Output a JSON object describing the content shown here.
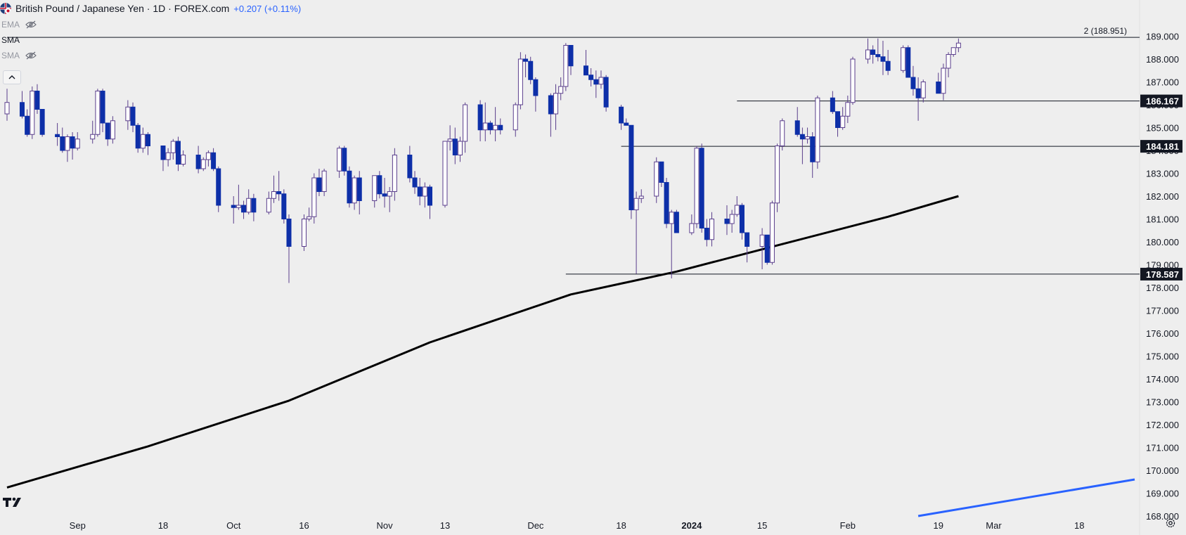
{
  "header": {
    "symbol_title": "British Pound / Japanese Yen · 1D · FOREX.com",
    "change": "+0.207 (+0.11%)"
  },
  "indicators": [
    {
      "label": "EMA",
      "visible": false,
      "icon": "eye-off-icon"
    },
    {
      "label": "SMA",
      "visible": true,
      "icon": "none"
    },
    {
      "label": "SMA",
      "visible": false,
      "icon": "eye-off-icon"
    }
  ],
  "colors": {
    "up": "#ffffff",
    "down": "#0d2fa8",
    "wick": "#5a3e8c",
    "sma200": "#000000",
    "sma_blue": "#2962ff",
    "background": "#eeeeee"
  },
  "chart_data": {
    "type": "candlestick",
    "title": "British Pound / Japanese Yen · 1D · FOREX.com",
    "y_axis": {
      "ticks": [
        "168.000",
        "169.000",
        "170.000",
        "171.000",
        "172.000",
        "173.000",
        "174.000",
        "175.000",
        "176.000",
        "177.000",
        "178.000",
        "179.000",
        "180.000",
        "181.000",
        "182.000",
        "183.000",
        "184.000",
        "185.000",
        "186.000",
        "187.000",
        "188.000",
        "189.000"
      ],
      "range": [
        168.0,
        189.6
      ]
    },
    "x_axis": {
      "ticks": [
        {
          "label": "Sep",
          "date": "2023-09-01"
        },
        {
          "label": "18",
          "date": "2023-09-18"
        },
        {
          "label": "Oct",
          "date": "2023-10-02"
        },
        {
          "label": "16",
          "date": "2023-10-16"
        },
        {
          "label": "Nov",
          "date": "2023-11-01"
        },
        {
          "label": "13",
          "date": "2023-11-13"
        },
        {
          "label": "Dec",
          "date": "2023-12-01"
        },
        {
          "label": "18",
          "date": "2023-12-18"
        },
        {
          "label": "2024",
          "date": "2024-01-01",
          "bold": true
        },
        {
          "label": "15",
          "date": "2024-01-15"
        },
        {
          "label": "Feb",
          "date": "2024-02-01"
        },
        {
          "label": "19",
          "date": "2024-02-19"
        },
        {
          "label": "Mar",
          "date": "2024-03-01"
        },
        {
          "label": "18",
          "date": "2024-03-18"
        }
      ],
      "range": [
        "2023-08-18",
        "2024-03-29"
      ]
    },
    "horizontal_levels": [
      {
        "value": 188.951,
        "label": "2 (188.951)",
        "style": "plain-label",
        "line_from": "2023-08-18"
      },
      {
        "value": 186.167,
        "label": "186.167",
        "style": "price-tag",
        "line_from": "2024-01-10"
      },
      {
        "value": 184.181,
        "label": "184.181",
        "style": "price-tag",
        "line_from": "2023-12-18"
      },
      {
        "value": 178.587,
        "label": "178.587",
        "style": "price-tag",
        "line_from": "2023-12-07"
      }
    ],
    "candles": [
      [
        "2023-08-18",
        185.6,
        186.7,
        185.3,
        186.1
      ],
      [
        "2023-08-21",
        186.1,
        186.6,
        185.4,
        185.5
      ],
      [
        "2023-08-22",
        185.5,
        185.8,
        184.6,
        184.7
      ],
      [
        "2023-08-23",
        184.7,
        186.8,
        184.5,
        186.6
      ],
      [
        "2023-08-24",
        186.6,
        186.9,
        185.6,
        185.8
      ],
      [
        "2023-08-25",
        185.8,
        185.8,
        184.6,
        184.7
      ],
      [
        "2023-08-28",
        184.7,
        185.2,
        184.2,
        184.6
      ],
      [
        "2023-08-29",
        184.6,
        185.0,
        183.9,
        184.0
      ],
      [
        "2023-08-30",
        184.0,
        184.7,
        183.5,
        184.6
      ],
      [
        "2023-08-31",
        184.6,
        184.8,
        183.6,
        184.1
      ],
      [
        "2023-09-01",
        184.1,
        184.8,
        184.0,
        184.5
      ],
      [
        "2023-09-04",
        184.5,
        185.3,
        184.3,
        184.7
      ],
      [
        "2023-09-05",
        184.7,
        186.7,
        184.6,
        186.6
      ],
      [
        "2023-09-06",
        186.6,
        186.7,
        184.8,
        185.2
      ],
      [
        "2023-09-07",
        185.2,
        185.2,
        184.2,
        184.5
      ],
      [
        "2023-09-08",
        184.5,
        185.5,
        184.3,
        185.3
      ],
      [
        "2023-09-11",
        185.3,
        186.2,
        184.9,
        185.9
      ],
      [
        "2023-09-12",
        185.9,
        186.1,
        184.8,
        185.1
      ],
      [
        "2023-09-13",
        185.1,
        185.2,
        183.9,
        184.1
      ],
      [
        "2023-09-14",
        184.1,
        185.0,
        183.9,
        184.7
      ],
      [
        "2023-09-15",
        184.7,
        184.8,
        183.8,
        184.2
      ],
      [
        "2023-09-18",
        184.2,
        184.2,
        183.1,
        183.6
      ],
      [
        "2023-09-19",
        183.6,
        184.1,
        183.3,
        183.9
      ],
      [
        "2023-09-20",
        183.9,
        184.5,
        183.6,
        184.4
      ],
      [
        "2023-09-21",
        184.4,
        184.6,
        183.1,
        183.4
      ],
      [
        "2023-09-22",
        183.4,
        184.0,
        183.3,
        183.8
      ],
      [
        "2023-09-25",
        183.8,
        184.2,
        183.0,
        183.2
      ],
      [
        "2023-09-26",
        183.2,
        183.7,
        183.1,
        183.6
      ],
      [
        "2023-09-27",
        183.6,
        184.0,
        183.3,
        183.9
      ],
      [
        "2023-09-28",
        183.9,
        184.1,
        183.1,
        183.2
      ],
      [
        "2023-09-29",
        183.2,
        183.3,
        181.3,
        181.6
      ],
      [
        "2023-10-02",
        181.6,
        182.0,
        180.8,
        181.5
      ],
      [
        "2023-10-03",
        181.5,
        182.5,
        181.4,
        181.6
      ],
      [
        "2023-10-04",
        181.6,
        181.8,
        181.0,
        181.3
      ],
      [
        "2023-10-05",
        181.3,
        182.3,
        181.2,
        181.9
      ],
      [
        "2023-10-06",
        181.9,
        182.1,
        180.9,
        181.3
      ],
      [
        "2023-10-09",
        181.3,
        182.2,
        181.2,
        181.9
      ],
      [
        "2023-10-10",
        181.9,
        182.9,
        181.7,
        182.2
      ],
      [
        "2023-10-11",
        182.2,
        183.1,
        181.8,
        182.1
      ],
      [
        "2023-10-12",
        182.1,
        182.3,
        180.8,
        181.0
      ],
      [
        "2023-10-13",
        181.0,
        181.2,
        178.2,
        179.8
      ],
      [
        "2023-10-16",
        179.8,
        181.2,
        179.6,
        181.0
      ],
      [
        "2023-10-17",
        181.0,
        181.5,
        180.9,
        181.1
      ],
      [
        "2023-10-18",
        181.1,
        183.0,
        180.8,
        182.8
      ],
      [
        "2023-10-19",
        182.8,
        183.2,
        182.0,
        182.2
      ],
      [
        "2023-10-20",
        182.2,
        183.2,
        182.0,
        183.1
      ],
      [
        "2023-10-23",
        183.1,
        184.2,
        182.8,
        184.1
      ],
      [
        "2023-10-24",
        184.1,
        184.2,
        182.9,
        183.1
      ],
      [
        "2023-10-25",
        183.1,
        183.3,
        181.5,
        181.7
      ],
      [
        "2023-10-26",
        181.7,
        182.9,
        181.4,
        182.8
      ],
      [
        "2023-10-27",
        182.8,
        183.1,
        181.2,
        181.8
      ],
      [
        "2023-10-30",
        181.8,
        182.9,
        181.5,
        182.9
      ],
      [
        "2023-10-31",
        182.9,
        183.1,
        181.9,
        182.1
      ],
      [
        "2023-11-01",
        182.1,
        182.8,
        181.5,
        182.0
      ],
      [
        "2023-11-02",
        182.0,
        182.4,
        181.3,
        182.2
      ],
      [
        "2023-11-03",
        182.2,
        184.1,
        181.8,
        183.8
      ],
      [
        "2023-11-06",
        183.8,
        184.2,
        182.6,
        182.8
      ],
      [
        "2023-11-07",
        182.8,
        183.1,
        182.1,
        182.4
      ],
      [
        "2023-11-08",
        182.4,
        182.8,
        181.6,
        182.0
      ],
      [
        "2023-11-09",
        182.0,
        182.6,
        181.5,
        182.4
      ],
      [
        "2023-11-10",
        182.4,
        182.5,
        181.0,
        181.6
      ],
      [
        "2023-11-13",
        181.6,
        184.4,
        181.5,
        184.4
      ],
      [
        "2023-11-14",
        184.4,
        185.1,
        184.0,
        184.5
      ],
      [
        "2023-11-15",
        184.5,
        185.0,
        183.4,
        183.8
      ],
      [
        "2023-11-16",
        183.8,
        184.6,
        183.5,
        184.4
      ],
      [
        "2023-11-17",
        184.4,
        186.1,
        183.9,
        186.0
      ],
      [
        "2023-11-20",
        186.0,
        186.2,
        184.4,
        184.9
      ],
      [
        "2023-11-21",
        184.9,
        186.1,
        184.4,
        185.2
      ],
      [
        "2023-11-22",
        185.2,
        185.3,
        184.7,
        184.9
      ],
      [
        "2023-11-23",
        184.9,
        185.9,
        184.4,
        185.1
      ],
      [
        "2023-11-24",
        185.1,
        185.4,
        184.7,
        184.9
      ],
      [
        "2023-11-27",
        184.9,
        186.1,
        184.6,
        186.0
      ],
      [
        "2023-11-28",
        186.0,
        188.3,
        185.8,
        188.0
      ],
      [
        "2023-11-29",
        188.0,
        188.2,
        187.2,
        187.9
      ],
      [
        "2023-11-30",
        187.9,
        188.1,
        186.9,
        187.1
      ],
      [
        "2023-12-01",
        187.1,
        187.2,
        185.7,
        186.4
      ],
      [
        "2023-12-04",
        186.4,
        186.5,
        184.6,
        185.6
      ],
      [
        "2023-12-05",
        185.6,
        186.9,
        184.9,
        186.5
      ],
      [
        "2023-12-06",
        186.5,
        187.2,
        186.2,
        186.8
      ],
      [
        "2023-12-07",
        186.8,
        188.7,
        186.6,
        188.6
      ],
      [
        "2023-12-08",
        188.6,
        188.6,
        187.3,
        187.7
      ],
      [
        "2023-12-11",
        187.7,
        188.4,
        187.3,
        187.3
      ],
      [
        "2023-12-12",
        187.3,
        187.6,
        186.8,
        187.1
      ],
      [
        "2023-12-13",
        187.1,
        187.5,
        186.3,
        186.9
      ],
      [
        "2023-12-14",
        186.9,
        187.5,
        186.7,
        187.2
      ],
      [
        "2023-12-15",
        187.2,
        187.3,
        185.7,
        185.9
      ],
      [
        "2023-12-18",
        185.9,
        186.0,
        184.9,
        185.2
      ],
      [
        "2023-12-19",
        185.2,
        185.4,
        185.1,
        185.1
      ],
      [
        "2023-12-20",
        185.1,
        185.1,
        181.0,
        181.4
      ],
      [
        "2023-12-21",
        181.4,
        182.2,
        178.6,
        181.9
      ],
      [
        "2023-12-22",
        181.9,
        182.3,
        181.7,
        182.0
      ],
      [
        "2023-12-25",
        182.0,
        183.7,
        181.7,
        183.5
      ],
      [
        "2023-12-26",
        183.5,
        183.5,
        182.4,
        182.6
      ],
      [
        "2023-12-27",
        182.6,
        182.8,
        180.6,
        180.8
      ],
      [
        "2023-12-28",
        180.8,
        181.4,
        178.4,
        181.3
      ],
      [
        "2023-12-29",
        181.3,
        181.4,
        180.4,
        180.4
      ],
      [
        "2024-01-01",
        180.4,
        181.2,
        180.3,
        180.8
      ],
      [
        "2024-01-02",
        180.8,
        184.2,
        180.6,
        184.1
      ],
      [
        "2024-01-03",
        184.1,
        184.3,
        180.4,
        180.6
      ],
      [
        "2024-01-04",
        180.6,
        181.0,
        179.8,
        180.1
      ],
      [
        "2024-01-05",
        180.1,
        181.3,
        179.8,
        181.0
      ],
      [
        "2024-01-08",
        181.0,
        181.6,
        180.3,
        180.8
      ],
      [
        "2024-01-09",
        180.8,
        181.4,
        180.4,
        181.2
      ],
      [
        "2024-01-10",
        181.2,
        182.0,
        181.1,
        181.6
      ],
      [
        "2024-01-11",
        181.6,
        181.7,
        180.1,
        180.4
      ],
      [
        "2024-01-12",
        180.4,
        180.4,
        179.1,
        179.8
      ],
      [
        "2024-01-15",
        179.8,
        180.6,
        178.8,
        180.3
      ],
      [
        "2024-01-16",
        180.3,
        180.3,
        179.0,
        179.1
      ],
      [
        "2024-01-17",
        179.1,
        181.8,
        179.0,
        181.7
      ],
      [
        "2024-01-18",
        181.7,
        184.3,
        181.3,
        184.2
      ],
      [
        "2024-01-19",
        184.2,
        185.4,
        184.0,
        185.3
      ],
      [
        "2024-01-22",
        185.3,
        185.9,
        184.6,
        184.7
      ],
      [
        "2024-01-23",
        184.7,
        185.0,
        183.4,
        184.5
      ],
      [
        "2024-01-24",
        184.5,
        185.0,
        184.3,
        184.6
      ],
      [
        "2024-01-25",
        184.6,
        184.8,
        182.8,
        183.5
      ],
      [
        "2024-01-26",
        183.5,
        186.4,
        183.2,
        186.3
      ],
      [
        "2024-01-29",
        186.3,
        186.6,
        185.6,
        185.7
      ],
      [
        "2024-01-30",
        185.7,
        185.7,
        184.6,
        185.0
      ],
      [
        "2024-01-31",
        185.0,
        185.9,
        184.9,
        185.5
      ],
      [
        "2024-02-01",
        185.5,
        186.4,
        185.2,
        186.1
      ],
      [
        "2024-02-02",
        186.1,
        188.1,
        186.0,
        188.0
      ],
      [
        "2024-02-05",
        188.0,
        188.9,
        187.8,
        188.4
      ],
      [
        "2024-02-06",
        188.4,
        188.6,
        187.8,
        188.2
      ],
      [
        "2024-02-07",
        188.2,
        188.9,
        187.9,
        188.1
      ],
      [
        "2024-02-08",
        188.1,
        188.8,
        187.3,
        187.9
      ],
      [
        "2024-02-09",
        187.9,
        188.4,
        187.3,
        187.5
      ],
      [
        "2024-02-12",
        187.5,
        188.6,
        187.4,
        188.5
      ],
      [
        "2024-02-13",
        188.5,
        188.6,
        187.2,
        187.2
      ],
      [
        "2024-02-14",
        187.2,
        187.7,
        186.4,
        186.7
      ],
      [
        "2024-02-15",
        186.7,
        187.2,
        185.3,
        186.3
      ],
      [
        "2024-02-16",
        186.3,
        187.1,
        186.1,
        187.0
      ],
      [
        "2024-02-19",
        187.0,
        187.4,
        186.5,
        186.5
      ],
      [
        "2024-02-20",
        186.5,
        187.8,
        186.2,
        187.6
      ],
      [
        "2024-02-21",
        187.6,
        188.3,
        187.2,
        188.2
      ],
      [
        "2024-02-22",
        188.2,
        188.5,
        188.1,
        188.5
      ],
      [
        "2024-02-23",
        188.5,
        188.9,
        188.3,
        188.7
      ]
    ],
    "sma_black": {
      "color": "#000000",
      "points": [
        [
          "2023-08-18",
          169.25
        ],
        [
          "2023-09-15",
          171.05
        ],
        [
          "2023-10-13",
          173.05
        ],
        [
          "2023-11-10",
          175.6
        ],
        [
          "2023-12-08",
          177.7
        ],
        [
          "2023-12-29",
          178.7
        ],
        [
          "2024-01-19",
          179.9
        ],
        [
          "2024-02-09",
          181.1
        ],
        [
          "2024-02-23",
          182.0
        ]
      ]
    },
    "sma_blue": {
      "color": "#2962ff",
      "points": [
        [
          "2024-02-15",
          168.0
        ],
        [
          "2024-03-29",
          169.6
        ]
      ]
    }
  }
}
